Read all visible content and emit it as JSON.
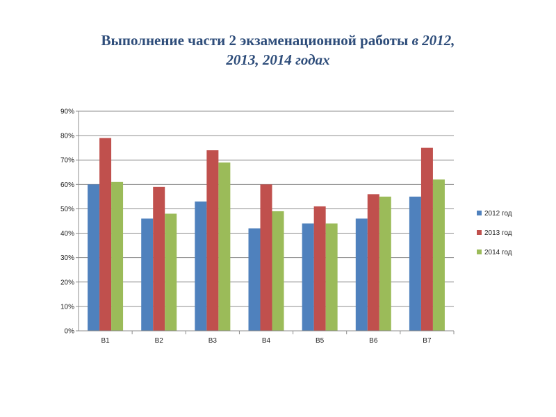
{
  "title": {
    "main": "Выполнение части 2 экзаменационной работы",
    "italic_a": "в 2012,",
    "italic_b": "2013, 2014  годах"
  },
  "chart_data": {
    "type": "bar",
    "categories": [
      "В1",
      "В2",
      "В3",
      "В4",
      "В5",
      "В6",
      "В7"
    ],
    "series": [
      {
        "name": "2012 год",
        "color": "#4f81bd",
        "values": [
          60,
          46,
          53,
          42,
          44,
          46,
          55
        ]
      },
      {
        "name": "2013 год",
        "color": "#c0504d",
        "values": [
          79,
          59,
          74,
          60,
          51,
          56,
          75
        ]
      },
      {
        "name": "2014 год",
        "color": "#9bbb59",
        "values": [
          61,
          48,
          69,
          49,
          44,
          55,
          62
        ]
      }
    ],
    "ylim": [
      0,
      90
    ],
    "yticks": [
      "0%",
      "10%",
      "20%",
      "30%",
      "40%",
      "50%",
      "60%",
      "70%",
      "80%",
      "90%"
    ],
    "grid": true,
    "legend_position": "right"
  }
}
